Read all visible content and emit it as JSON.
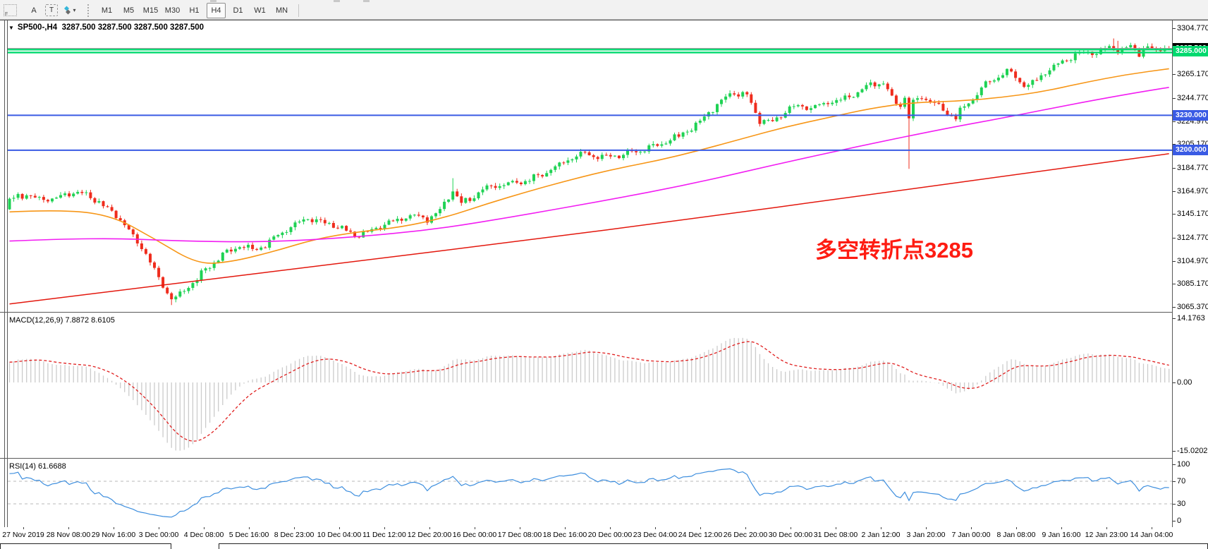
{
  "icons": {
    "dropdown": "▾",
    "collapse": "▼"
  },
  "toolbar": {
    "grip_label": "F",
    "tools": [
      {
        "id": "cursor",
        "label": "A"
      },
      {
        "id": "text",
        "label": "T"
      },
      {
        "id": "draw-arrows",
        "label": "",
        "has_dropdown": true
      }
    ],
    "timeframes": [
      {
        "label": "M1",
        "active": false
      },
      {
        "label": "M5",
        "active": false
      },
      {
        "label": "M15",
        "active": false
      },
      {
        "label": "M30",
        "active": false
      },
      {
        "label": "H1",
        "active": false
      },
      {
        "label": "H4",
        "active": true
      },
      {
        "label": "D1",
        "active": false
      },
      {
        "label": "W1",
        "active": false
      },
      {
        "label": "MN",
        "active": false
      }
    ]
  },
  "chart": {
    "title": "SP500-,H4  3287.500 3287.500 3287.500 3287.500",
    "annotation": {
      "text": "多空转折点3285",
      "color": "#fe1c12"
    },
    "price_axis": {
      "ticks": [
        "3304.770",
        "3265.170",
        "3244.770",
        "3224.970",
        "3205.170",
        "3184.770",
        "3164.970",
        "3145.170",
        "3124.770",
        "3104.970",
        "3085.170",
        "3065.370"
      ],
      "badges": [
        {
          "label": "3287.500",
          "price": 3287.5,
          "bg": "#000000"
        },
        {
          "label": "3285.000",
          "price": 3285.0,
          "bg": "#00d96e"
        },
        {
          "label": "3230.000",
          "price": 3230.0,
          "bg": "#3a5be4"
        },
        {
          "label": "3200.000",
          "price": 3200.0,
          "bg": "#3a5be4"
        }
      ]
    }
  },
  "macd": {
    "label": "MACD(12,26,9) 7.8872 8.6105",
    "ticks": [
      "14.1763",
      "0.00",
      "-15.0202"
    ],
    "fast": 12,
    "slow": 26,
    "smoothing": 9
  },
  "rsi": {
    "label": "RSI(14) 61.6688",
    "ticks": [
      "100",
      "70",
      "30",
      "0"
    ],
    "period": 14,
    "value": 61.6688
  },
  "time_axis": {
    "labels": [
      "27 Nov 2019",
      "28 Nov 08:00",
      "29 Nov 16:00",
      "3 Dec 00:00",
      "4 Dec 08:00",
      "5 Dec 16:00",
      "8 Dec 23:00",
      "10 Dec 04:00",
      "11 Dec 12:00",
      "12 Dec 20:00",
      "16 Dec 00:00",
      "17 Dec 08:00",
      "18 Dec 16:00",
      "20 Dec 00:00",
      "23 Dec 04:00",
      "24 Dec 12:00",
      "26 Dec 20:00",
      "30 Dec 00:00",
      "31 Dec 08:00",
      "2 Jan 12:00",
      "3 Jan 20:00",
      "7 Jan 00:00",
      "8 Jan 08:00",
      "9 Jan 16:00",
      "12 Jan 23:00",
      "14 Jan 04:00"
    ]
  },
  "chart_data": {
    "type": "candlestick",
    "symbol": "SP500-",
    "timeframe": "H4",
    "ohlc_current": {
      "open": 3287.5,
      "high": 3287.5,
      "low": 3287.5,
      "close": 3287.5
    },
    "y_axis": {
      "visible_min": 3061.0,
      "visible_max": 3312.0
    },
    "visible_bars": 273,
    "close_anchors": [
      [
        0,
        3158
      ],
      [
        4,
        3162
      ],
      [
        8,
        3157
      ],
      [
        12,
        3160
      ],
      [
        16,
        3164
      ],
      [
        20,
        3158
      ],
      [
        23,
        3150
      ],
      [
        26,
        3141
      ],
      [
        29,
        3126
      ],
      [
        32,
        3111
      ],
      [
        35,
        3090
      ],
      [
        38,
        3072
      ],
      [
        41,
        3079
      ],
      [
        44,
        3090
      ],
      [
        47,
        3101
      ],
      [
        50,
        3110
      ],
      [
        54,
        3118
      ],
      [
        58,
        3114
      ],
      [
        62,
        3124
      ],
      [
        66,
        3135
      ],
      [
        70,
        3141
      ],
      [
        74,
        3138
      ],
      [
        78,
        3133
      ],
      [
        82,
        3127
      ],
      [
        86,
        3133
      ],
      [
        90,
        3139
      ],
      [
        94,
        3144
      ],
      [
        98,
        3141
      ],
      [
        101,
        3149
      ],
      [
        103,
        3159
      ],
      [
        104,
        3166
      ],
      [
        106,
        3154
      ],
      [
        108,
        3158
      ],
      [
        111,
        3166
      ],
      [
        115,
        3170
      ],
      [
        119,
        3172
      ],
      [
        123,
        3176
      ],
      [
        127,
        3184
      ],
      [
        131,
        3192
      ],
      [
        135,
        3197
      ],
      [
        139,
        3194
      ],
      [
        143,
        3195
      ],
      [
        147,
        3199
      ],
      [
        150,
        3202
      ],
      [
        154,
        3207
      ],
      [
        158,
        3214
      ],
      [
        162,
        3224
      ],
      [
        166,
        3240
      ],
      [
        170,
        3250
      ],
      [
        173,
        3247
      ],
      [
        176,
        3226
      ],
      [
        179,
        3224
      ],
      [
        182,
        3234
      ],
      [
        185,
        3238
      ],
      [
        188,
        3236
      ],
      [
        191,
        3240
      ],
      [
        194,
        3243
      ],
      [
        197,
        3246
      ],
      [
        200,
        3252
      ],
      [
        203,
        3258
      ],
      [
        205,
        3257
      ],
      [
        207,
        3245
      ],
      [
        209,
        3238
      ],
      [
        210,
        3246
      ],
      [
        211,
        3228
      ],
      [
        212,
        3240
      ],
      [
        214,
        3247
      ],
      [
        216,
        3242
      ],
      [
        218,
        3237
      ],
      [
        220,
        3231
      ],
      [
        222,
        3228
      ],
      [
        224,
        3238
      ],
      [
        226,
        3245
      ],
      [
        228,
        3253
      ],
      [
        230,
        3259
      ],
      [
        233,
        3266
      ],
      [
        235,
        3268
      ],
      [
        237,
        3258
      ],
      [
        239,
        3254
      ],
      [
        241,
        3261
      ],
      [
        244,
        3269
      ],
      [
        247,
        3276
      ],
      [
        250,
        3282
      ],
      [
        253,
        3285
      ],
      [
        255,
        3282
      ],
      [
        257,
        3287
      ],
      [
        259,
        3289
      ],
      [
        261,
        3285
      ],
      [
        263,
        3289
      ],
      [
        265,
        3284
      ],
      [
        267,
        3288
      ],
      [
        269,
        3285
      ],
      [
        271,
        3289
      ],
      [
        272,
        3287.5
      ]
    ],
    "wick_overrides": {
      "38": {
        "low": 3067
      },
      "104": {
        "high": 3176
      },
      "211": {
        "low": 3184
      },
      "259": {
        "high": 3296
      },
      "260": {
        "high": 3294
      }
    },
    "prehistory": {
      "bars": 220,
      "start": 2960,
      "end": 3152
    },
    "horizontal_lines": [
      {
        "price": 3286.4,
        "color": "#00d96e",
        "width": 2.4,
        "style": "solid"
      },
      {
        "price": 3283.9,
        "color": "#00d96e",
        "width": 2.4,
        "style": "solid"
      },
      {
        "price": 3230.0,
        "color": "#3a5be4",
        "width": 2,
        "style": "solid"
      },
      {
        "price": 3200.0,
        "color": "#3a5be4",
        "width": 2,
        "style": "solid"
      },
      {
        "price": 3287.5,
        "color": "#9a9a9a",
        "width": 1,
        "style": "current-price"
      }
    ],
    "moving_averages": [
      {
        "name": "ma-fast-orange",
        "color": "#f79617",
        "width": 1.6,
        "points": [
          [
            0,
            3147
          ],
          [
            12,
            3149
          ],
          [
            24,
            3144
          ],
          [
            34,
            3124
          ],
          [
            44,
            3102
          ],
          [
            52,
            3104
          ],
          [
            62,
            3113
          ],
          [
            72,
            3124
          ],
          [
            82,
            3130
          ],
          [
            92,
            3134
          ],
          [
            102,
            3142
          ],
          [
            112,
            3154
          ],
          [
            122,
            3165
          ],
          [
            132,
            3175
          ],
          [
            142,
            3184
          ],
          [
            152,
            3191
          ],
          [
            162,
            3200
          ],
          [
            172,
            3210
          ],
          [
            182,
            3220
          ],
          [
            192,
            3228
          ],
          [
            202,
            3236
          ],
          [
            212,
            3241
          ],
          [
            222,
            3242
          ],
          [
            232,
            3245
          ],
          [
            242,
            3250
          ],
          [
            252,
            3258
          ],
          [
            262,
            3265
          ],
          [
            272,
            3270
          ]
        ]
      },
      {
        "name": "ma-mid-magenta",
        "color": "#f21df2",
        "width": 1.6,
        "points": [
          [
            0,
            3122
          ],
          [
            20,
            3125
          ],
          [
            40,
            3122
          ],
          [
            60,
            3121
          ],
          [
            80,
            3125
          ],
          [
            100,
            3132
          ],
          [
            120,
            3144
          ],
          [
            140,
            3157
          ],
          [
            160,
            3171
          ],
          [
            180,
            3188
          ],
          [
            200,
            3204
          ],
          [
            220,
            3219
          ],
          [
            235,
            3229
          ],
          [
            250,
            3240
          ],
          [
            262,
            3248
          ],
          [
            272,
            3254
          ]
        ]
      },
      {
        "name": "ma-slow-red",
        "color": "#e3170d",
        "width": 1.5,
        "points": [
          [
            0,
            3068
          ],
          [
            40,
            3086
          ],
          [
            80,
            3104
          ],
          [
            120,
            3122
          ],
          [
            160,
            3141
          ],
          [
            200,
            3161
          ],
          [
            240,
            3181
          ],
          [
            272,
            3197
          ]
        ]
      }
    ],
    "macd_scale": {
      "max": 14.1763,
      "min": -15.0202,
      "zero": 0
    },
    "rsi_levels": [
      70,
      30
    ],
    "colors": {
      "bull": "#1fd254",
      "bear": "#ef2c1d",
      "macd_hist": "#cbcbcb",
      "macd_signal": "#e01f1f",
      "rsi_line": "#3d8ede"
    }
  }
}
